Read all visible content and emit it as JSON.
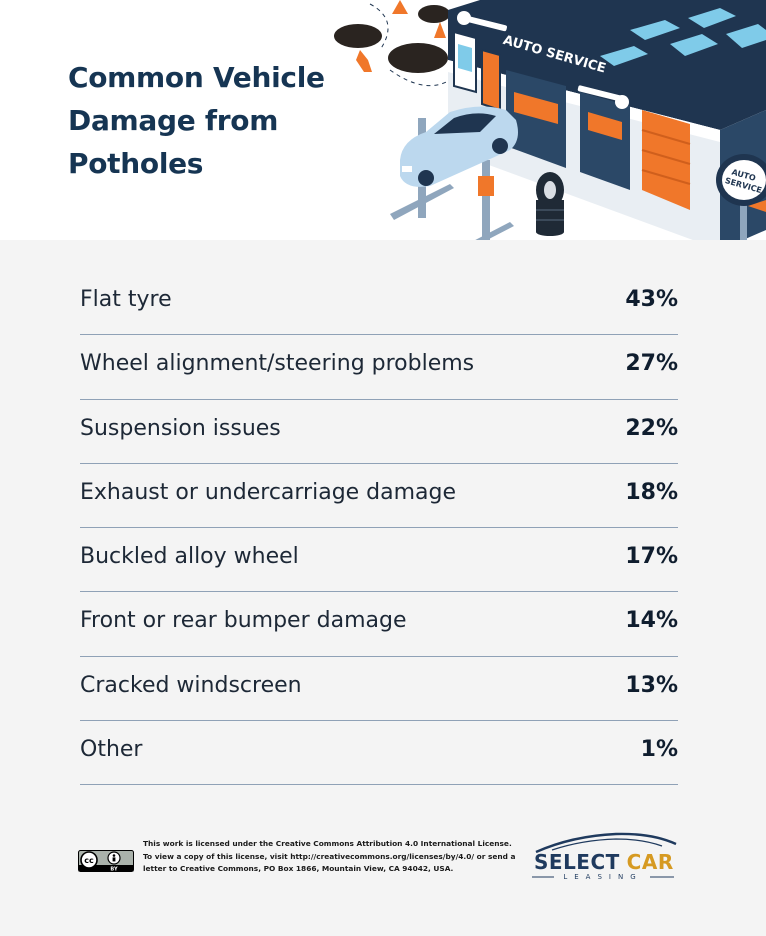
{
  "title": "Common Vehicle Damage from Potholes",
  "chart_data": {
    "type": "table",
    "title": "Common Vehicle Damage from Potholes",
    "rows": [
      {
        "label": "Flat tyre",
        "value": "43%"
      },
      {
        "label": "Wheel alignment/steering problems",
        "value": "27%"
      },
      {
        "label": "Suspension issues",
        "value": "22%"
      },
      {
        "label": "Exhaust or undercarriage damage",
        "value": "18%"
      },
      {
        "label": "Buckled alloy wheel",
        "value": "17%"
      },
      {
        "label": "Front or rear bumper damage",
        "value": "14%"
      },
      {
        "label": "Cracked windscreen",
        "value": "13%"
      },
      {
        "label": "Other",
        "value": "1%"
      }
    ],
    "values": [
      43,
      27,
      22,
      18,
      17,
      14,
      13,
      1
    ]
  },
  "illustration": {
    "sign_text": "AUTO SERVICE",
    "post_sign_line1": "AUTO",
    "post_sign_line2": "SERVICE"
  },
  "footer": {
    "cc_badge": {
      "left": "cc",
      "right": "BY"
    },
    "license_line1": "This work is licensed under the Creative Commons Attribution 4.0 International License.",
    "license_line2": "To view a copy of this license, visit http://creativecommons.org/licenses/by/4.0/ or send a",
    "license_line3": "letter to Creative Commons, PO Box 1866, Mountain View, CA 94042, USA.",
    "logo_word1": "SELECT",
    "logo_word2": "CAR",
    "logo_sub": "LEASING"
  },
  "colors": {
    "title": "#163553",
    "panel_bg": "#f4f4f4",
    "divider": "#8fa1b6",
    "building_dark": "#1f3550",
    "accent_orange": "#f0772a",
    "accent_blue": "#6fc3e8",
    "logo_gold": "#d69a22"
  }
}
